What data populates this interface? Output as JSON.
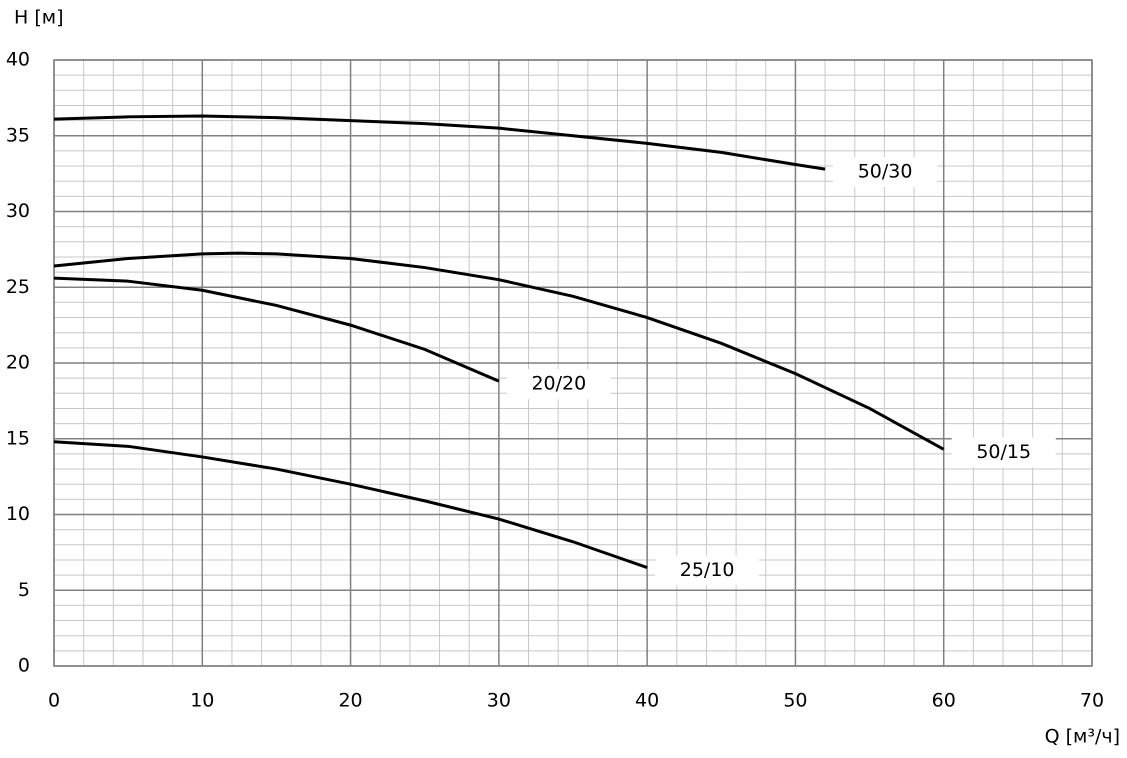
{
  "chart_data": {
    "type": "line",
    "y_label": "H [м]",
    "x_label": "Q [м³/ч]",
    "xlim": [
      0,
      70
    ],
    "ylim": [
      0,
      40
    ],
    "xticks": [
      0,
      10,
      20,
      30,
      40,
      50,
      60,
      70
    ],
    "yticks": [
      0,
      5,
      10,
      15,
      20,
      25,
      30,
      35,
      40
    ],
    "minor_xticks": [
      2,
      4,
      6,
      8,
      12,
      14,
      16,
      18,
      22,
      24,
      26,
      28,
      32,
      34,
      36,
      38,
      42,
      44,
      46,
      48,
      52,
      54,
      56,
      58,
      62,
      64,
      66,
      68
    ],
    "minor_yticks": [
      1,
      2,
      3,
      4,
      6,
      7,
      8,
      9,
      11,
      12,
      13,
      14,
      16,
      17,
      18,
      19,
      21,
      22,
      23,
      24,
      26,
      27,
      28,
      29,
      31,
      32,
      33,
      34,
      36,
      37,
      38,
      39
    ],
    "grid": true,
    "series": [
      {
        "name": "50/30",
        "color": "#000000",
        "x": [
          0,
          5,
          10,
          15,
          20,
          25,
          30,
          35,
          40,
          45,
          50,
          52
        ],
        "values": [
          36.1,
          36.25,
          36.3,
          36.2,
          36.0,
          35.8,
          35.5,
          35.0,
          34.5,
          33.9,
          33.1,
          32.8
        ]
      },
      {
        "name": "50/15",
        "color": "#000000",
        "x": [
          0,
          5,
          10,
          12.5,
          15,
          20,
          25,
          30,
          35,
          40,
          45,
          50,
          55,
          60
        ],
        "values": [
          26.4,
          26.9,
          27.2,
          27.25,
          27.2,
          26.9,
          26.3,
          25.5,
          24.4,
          23.0,
          21.3,
          19.3,
          17.0,
          14.3
        ]
      },
      {
        "name": "20/20",
        "color": "#000000",
        "x": [
          0,
          5,
          10,
          15,
          20,
          25,
          30
        ],
        "values": [
          25.6,
          25.4,
          24.8,
          23.8,
          22.5,
          20.9,
          18.8
        ]
      },
      {
        "name": "25/10",
        "color": "#000000",
        "x": [
          0,
          5,
          10,
          15,
          20,
          25,
          30,
          35,
          40
        ],
        "values": [
          14.8,
          14.5,
          13.8,
          13.0,
          12.0,
          10.9,
          9.7,
          8.2,
          6.5
        ]
      }
    ]
  }
}
